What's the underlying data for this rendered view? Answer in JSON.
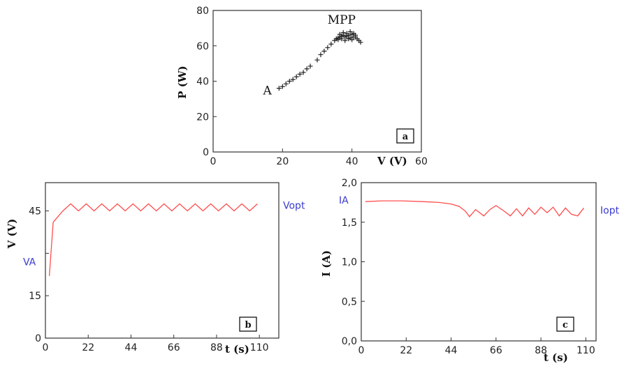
{
  "chart_data": [
    {
      "id": "a",
      "type": "scatter",
      "badge": "a",
      "xlabel": "V (V)",
      "ylabel": "P (W)",
      "xlim": [
        0,
        60
      ],
      "ylim": [
        0,
        80
      ],
      "xticks": [
        "0",
        "20",
        "40",
        "60"
      ],
      "yticks": [
        "0",
        "20",
        "40",
        "60",
        "80"
      ],
      "marker": "+",
      "color": "#222222",
      "annotations": [
        {
          "text": "A",
          "x": 16,
          "y": 34
        },
        {
          "text": "MPP",
          "x": 39,
          "y": 71
        }
      ],
      "points": [
        [
          19,
          36
        ],
        [
          20,
          37
        ],
        [
          21,
          38.5
        ],
        [
          22,
          40
        ],
        [
          23,
          41
        ],
        [
          24,
          42.5
        ],
        [
          25,
          44
        ],
        [
          26,
          45
        ],
        [
          27,
          47
        ],
        [
          28,
          48.5
        ],
        [
          30,
          52
        ],
        [
          31,
          55
        ],
        [
          32,
          57
        ],
        [
          33,
          59
        ],
        [
          34,
          61
        ],
        [
          35,
          63
        ],
        [
          35.5,
          64
        ],
        [
          36,
          64.5
        ],
        [
          36.5,
          65
        ],
        [
          37,
          65.5
        ],
        [
          37.5,
          66
        ],
        [
          38,
          65
        ],
        [
          38.5,
          67
        ],
        [
          39,
          66
        ],
        [
          39.5,
          68
        ],
        [
          40,
          66.5
        ],
        [
          40.5,
          67
        ],
        [
          41,
          65
        ],
        [
          41.5,
          64
        ],
        [
          42,
          63
        ],
        [
          36,
          63.5
        ],
        [
          37,
          64
        ],
        [
          38,
          63
        ],
        [
          39,
          64
        ],
        [
          40,
          63.5
        ],
        [
          41,
          66
        ],
        [
          42.5,
          62
        ],
        [
          38.5,
          65.5
        ],
        [
          39.5,
          64.5
        ],
        [
          40.5,
          65
        ],
        [
          37.5,
          67.5
        ],
        [
          36.5,
          66.5
        ]
      ]
    },
    {
      "id": "b",
      "type": "line",
      "badge": "b",
      "xlabel": "t (s)",
      "ylabel": "V (V)",
      "xlim": [
        0,
        120
      ],
      "ylim": [
        0,
        55
      ],
      "xticks": [
        "0",
        "22",
        "44",
        "66",
        "88",
        "110"
      ],
      "yticks": [
        "0",
        "15",
        "",
        "45"
      ],
      "ytick_values": [
        0,
        15,
        30,
        45
      ],
      "xtick_values": [
        0,
        22,
        44,
        66,
        88,
        110
      ],
      "color": "#ff4d4d",
      "annotations": [
        {
          "text": "VA",
          "side": "left",
          "y": 27
        },
        {
          "text": "Vopt",
          "side": "right",
          "y": 47
        }
      ],
      "series": [
        {
          "x": [
            2,
            4,
            9,
            13,
            17,
            21,
            25,
            29,
            33,
            37,
            41,
            45,
            49,
            53,
            57,
            61,
            65,
            69,
            73,
            77,
            81,
            85,
            89,
            93,
            97,
            101,
            105,
            109
          ],
          "y": [
            22,
            41,
            45,
            47.5,
            45,
            47.5,
            45,
            47.5,
            45,
            47.5,
            45,
            47.5,
            45,
            47.5,
            45,
            47.5,
            45,
            47.5,
            45,
            47.5,
            45,
            47.5,
            45,
            47.5,
            45,
            47.5,
            45,
            47.5
          ]
        }
      ]
    },
    {
      "id": "c",
      "type": "line",
      "badge": "c",
      "xlabel": "t (s)",
      "ylabel": "I (A)",
      "xlim": [
        0,
        115
      ],
      "ylim": [
        0,
        2.0
      ],
      "xticks": [
        "0",
        "22",
        "44",
        "66",
        "88",
        "110"
      ],
      "xtick_values": [
        0,
        22,
        44,
        66,
        88,
        110
      ],
      "yticks": [
        "0,0",
        "0,5",
        "1,0",
        "1,5",
        "2,0"
      ],
      "ytick_values": [
        0,
        0.5,
        1.0,
        1.5,
        2.0
      ],
      "color": "#ff4d4d",
      "annotations": [
        {
          "text": "IA",
          "side": "left",
          "y": 1.78
        },
        {
          "text": "Iopt",
          "side": "right",
          "y": 1.65
        }
      ],
      "series": [
        {
          "x": [
            2,
            10,
            20,
            30,
            38,
            44,
            48,
            51,
            53,
            56,
            60,
            63,
            66,
            70,
            73,
            76,
            79,
            82,
            85,
            88,
            91,
            94,
            97,
            100,
            103,
            106,
            109
          ],
          "y": [
            1.76,
            1.77,
            1.77,
            1.76,
            1.75,
            1.73,
            1.7,
            1.64,
            1.57,
            1.66,
            1.58,
            1.66,
            1.71,
            1.64,
            1.58,
            1.67,
            1.58,
            1.68,
            1.6,
            1.69,
            1.62,
            1.69,
            1.58,
            1.68,
            1.6,
            1.58,
            1.68
          ]
        }
      ]
    }
  ]
}
